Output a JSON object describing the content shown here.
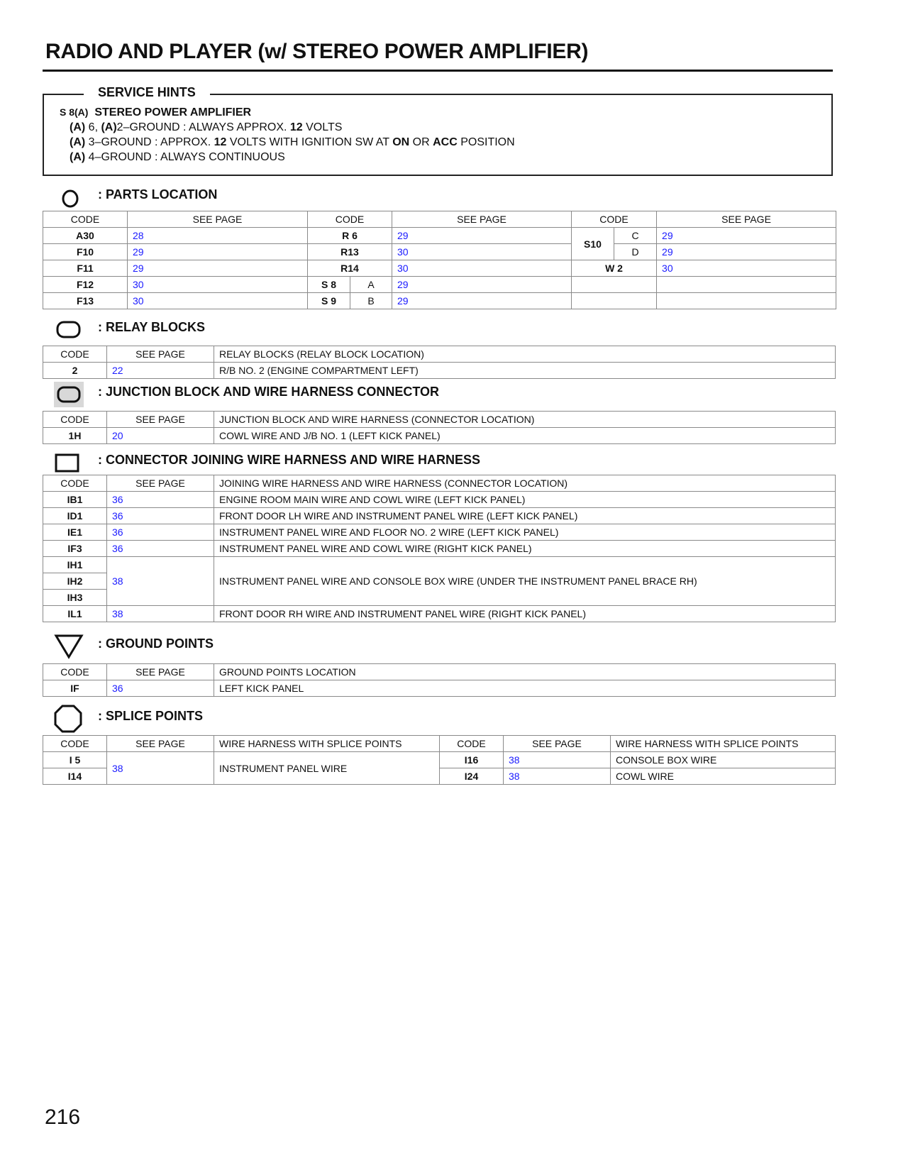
{
  "title": "RADIO AND PLAYER (w/ STEREO POWER AMPLIFIER)",
  "service_hints": {
    "heading": "SERVICE HINTS",
    "connector_code": "S 8(A)",
    "component": "STEREO POWER AMPLIFIER",
    "lines": [
      {
        "a1": "(A)",
        "t1": " 6, ",
        "a2": "(A)",
        "t2": "2–GROUND : ALWAYS APPROX. ",
        "v": "12",
        "t3": " VOLTS"
      },
      {
        "a1": "(A)",
        "t1": " 3–GROUND : APPROX. ",
        "v": "12",
        "t2": " VOLTS WITH IGNITION SW AT ",
        "on": "ON",
        "t3": " OR ",
        "acc": "ACC",
        "t4": " POSITION"
      },
      {
        "a1": "(A)",
        "t1": " 4–GROUND : ALWAYS CONTINUOUS"
      }
    ]
  },
  "colors": {
    "link": "#1a1aff",
    "text": "#111111",
    "border": "#8a8a8a"
  },
  "parts_location": {
    "heading": ": PARTS LOCATION",
    "icon": "circle-icon",
    "headers": [
      "CODE",
      "SEE PAGE",
      "CODE",
      "SEE PAGE",
      "CODE",
      "SEE PAGE"
    ],
    "col1": [
      [
        "A30",
        "28"
      ],
      [
        "F10",
        "29"
      ],
      [
        "F11",
        "29"
      ],
      [
        "F12",
        "30"
      ],
      [
        "F13",
        "30"
      ]
    ],
    "col2": [
      {
        "code": "R 6",
        "page": "29"
      },
      {
        "code": "R13",
        "page": "30"
      },
      {
        "code": "R14",
        "page": "30"
      },
      {
        "code": "S 8",
        "sub": "A",
        "page": "29"
      },
      {
        "code": "S 9",
        "sub": "B",
        "page": "29"
      }
    ],
    "col3": {
      "s10": "S10",
      "s10_c": "C",
      "s10_c_page": "29",
      "s10_d": "D",
      "s10_d_page": "29",
      "w2": "W 2",
      "w2_page": "30"
    }
  },
  "relay_blocks": {
    "heading": ": RELAY BLOCKS",
    "icon": "rounded-rectangle-icon",
    "headers": [
      "CODE",
      "SEE PAGE",
      "RELAY BLOCKS (RELAY BLOCK LOCATION)"
    ],
    "rows": [
      [
        "2",
        "22",
        "R/B NO. 2 (ENGINE COMPARTMENT LEFT)"
      ]
    ]
  },
  "junction_blocks": {
    "heading": ": JUNCTION BLOCK AND WIRE HARNESS CONNECTOR",
    "icon": "shaded-rounded-rectangle-icon",
    "headers": [
      "CODE",
      "SEE PAGE",
      "JUNCTION BLOCK AND WIRE HARNESS (CONNECTOR LOCATION)"
    ],
    "rows": [
      [
        "1H",
        "20",
        "COWL WIRE AND J/B NO. 1  (LEFT KICK PANEL)"
      ]
    ]
  },
  "connector_joining": {
    "heading": ": CONNECTOR JOINING WIRE HARNESS AND WIRE HARNESS",
    "icon": "rectangle-icon",
    "headers": [
      "CODE",
      "SEE PAGE",
      "JOINING WIRE HARNESS AND WIRE HARNESS (CONNECTOR LOCATION)"
    ],
    "rows": [
      [
        "IB1",
        "36",
        "ENGINE ROOM MAIN WIRE AND COWL WIRE (LEFT KICK PANEL)"
      ],
      [
        "ID1",
        "36",
        "FRONT DOOR LH WIRE AND INSTRUMENT PANEL WIRE (LEFT KICK PANEL)"
      ],
      [
        "IE1",
        "36",
        "INSTRUMENT PANEL WIRE AND FLOOR NO. 2 WIRE (LEFT KICK PANEL)"
      ],
      [
        "IF3",
        "36",
        "INSTRUMENT PANEL WIRE AND COWL WIRE (RIGHT KICK PANEL)"
      ]
    ],
    "group": {
      "codes": [
        "IH1",
        "IH2",
        "IH3"
      ],
      "page": "38",
      "desc": "INSTRUMENT PANEL WIRE AND CONSOLE BOX WIRE (UNDER THE INSTRUMENT PANEL BRACE RH)"
    },
    "last": [
      "IL1",
      "38",
      "FRONT DOOR RH WIRE AND INSTRUMENT PANEL WIRE (RIGHT KICK PANEL)"
    ]
  },
  "ground_points": {
    "heading": ": GROUND POINTS",
    "icon": "triangle-down-icon",
    "headers": [
      "CODE",
      "SEE PAGE",
      "GROUND POINTS LOCATION"
    ],
    "rows": [
      [
        "IF",
        "36",
        "LEFT KICK PANEL"
      ]
    ]
  },
  "splice_points": {
    "heading": ": SPLICE POINTS",
    "icon": "octagon-icon",
    "headers": [
      "CODE",
      "SEE PAGE",
      "WIRE HARNESS WITH SPLICE POINTS",
      "CODE",
      "SEE PAGE",
      "WIRE HARNESS WITH SPLICE POINTS"
    ],
    "left": {
      "codes": [
        "I 5",
        "I14"
      ],
      "page": "38",
      "desc": "INSTRUMENT PANEL WIRE"
    },
    "right": [
      [
        "I16",
        "38",
        "CONSOLE BOX WIRE"
      ],
      [
        "I24",
        "38",
        "COWL WIRE"
      ]
    ]
  },
  "page_number": "216"
}
